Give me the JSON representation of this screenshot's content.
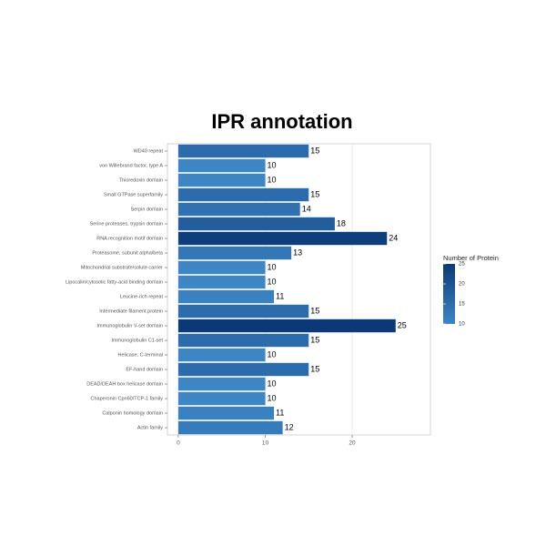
{
  "chart_data": {
    "type": "bar",
    "orientation": "horizontal",
    "title": "IPR annotation",
    "categories": [
      "WD40 repeat",
      "von Willebrand factor, type A",
      "Thioredoxin domain",
      "Small GTPase superfamily",
      "Serpin domain",
      "Serine proteases, trypsin domain",
      "RNA recognition motif domain",
      "Proteasome, subunit alpha/beta",
      "Mitochondrial substrate/solute carrier",
      "Lipocalin/cytosolic fatty-acid binding domain",
      "Leucine-rich repeat",
      "Intermediate filament protein",
      "Immunoglobulin V-set domain",
      "Immunoglobulin C1-set",
      "Helicase, C-terminal",
      "EF-hand domain",
      "DEAD/DEAH box helicase domain",
      "Chaperonin Cpn60/TCP-1 family",
      "Calponin homology domain",
      "Actin family"
    ],
    "values": [
      15,
      10,
      10,
      15,
      14,
      18,
      24,
      13,
      10,
      10,
      11,
      15,
      25,
      15,
      10,
      15,
      10,
      10,
      11,
      12
    ],
    "xlim": [
      -1.25,
      29
    ],
    "xticks": [
      0,
      10,
      20
    ],
    "grid": true,
    "color_scale": {
      "title": "Number of Protein",
      "low": "#3d86c6",
      "high": "#0b3977",
      "lim": [
        10,
        25
      ],
      "ticks": [
        10,
        15,
        20,
        25
      ]
    }
  }
}
